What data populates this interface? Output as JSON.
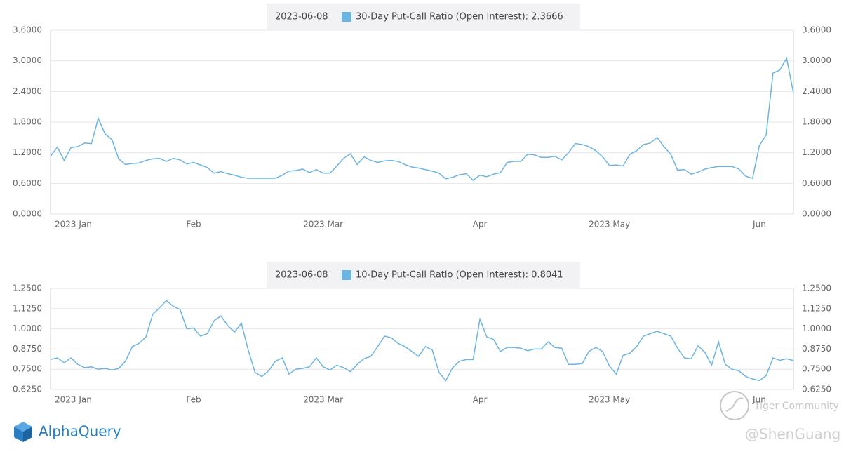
{
  "chart_data": [
    {
      "type": "line",
      "date": "2023-06-08",
      "categories": [
        "2023 Jan",
        null,
        null,
        null,
        null,
        null,
        null,
        null,
        null,
        null,
        null,
        null,
        null,
        null,
        null,
        null,
        null,
        null,
        null,
        null,
        null,
        "Feb",
        null,
        null,
        null,
        null,
        null,
        null,
        null,
        null,
        null,
        null,
        null,
        null,
        null,
        null,
        null,
        null,
        null,
        null,
        "2023 Mar",
        null,
        null,
        null,
        null,
        null,
        null,
        null,
        null,
        null,
        null,
        null,
        null,
        null,
        null,
        null,
        null,
        null,
        null,
        null,
        null,
        null,
        null,
        "Apr",
        null,
        null,
        null,
        null,
        null,
        null,
        null,
        null,
        null,
        null,
        null,
        null,
        null,
        null,
        null,
        null,
        null,
        null,
        "2023 May",
        null,
        null,
        null,
        null,
        null,
        null,
        null,
        null,
        null,
        null,
        null,
        null,
        null,
        null,
        null,
        null,
        null,
        null,
        null,
        null,
        null,
        "Jun",
        null,
        null,
        null,
        null,
        null
      ],
      "series": [
        {
          "name": "30-Day Put-Call Ratio (Open Interest): 2.3666",
          "color": "#6cb4e4",
          "values": [
            1.13,
            1.31,
            1.05,
            1.3,
            1.32,
            1.39,
            1.38,
            1.87,
            1.57,
            1.46,
            1.08,
            0.97,
            0.99,
            1.0,
            1.05,
            1.08,
            1.09,
            1.03,
            1.09,
            1.06,
            0.98,
            1.01,
            0.96,
            0.91,
            0.8,
            0.83,
            0.79,
            0.76,
            0.72,
            0.7,
            0.7,
            0.7,
            0.7,
            0.7,
            0.76,
            0.84,
            0.85,
            0.88,
            0.81,
            0.87,
            0.8,
            0.8,
            0.94,
            1.09,
            1.18,
            0.97,
            1.12,
            1.05,
            1.01,
            1.04,
            1.05,
            1.03,
            0.97,
            0.92,
            0.9,
            0.87,
            0.84,
            0.8,
            0.69,
            0.72,
            0.77,
            0.79,
            0.66,
            0.76,
            0.73,
            0.78,
            0.81,
            1.01,
            1.03,
            1.03,
            1.17,
            1.16,
            1.11,
            1.11,
            1.13,
            1.06,
            1.2,
            1.38,
            1.36,
            1.32,
            1.24,
            1.12,
            0.95,
            0.96,
            0.94,
            1.17,
            1.24,
            1.36,
            1.39,
            1.5,
            1.32,
            1.17,
            0.86,
            0.87,
            0.78,
            0.82,
            0.88,
            0.91,
            0.93,
            0.93,
            0.93,
            0.88,
            0.74,
            0.7,
            1.34,
            1.55,
            2.76,
            2.82,
            3.05,
            2.3666
          ]
        }
      ],
      "ylim": [
        0,
        3.6
      ],
      "yticks": [
        {
          "value": 0,
          "label": "0.0000"
        },
        {
          "value": 0.6,
          "label": "0.6000"
        },
        {
          "value": 1.2,
          "label": "1.2000"
        },
        {
          "value": 1.8,
          "label": "1.8000"
        },
        {
          "value": 2.4,
          "label": "2.4000"
        },
        {
          "value": 3,
          "label": "3.0000"
        },
        {
          "value": 3.6,
          "label": "3.6000"
        }
      ],
      "grid": true
    },
    {
      "type": "line",
      "date": "2023-06-08",
      "categories": [
        "2023 Jan",
        null,
        null,
        null,
        null,
        null,
        null,
        null,
        null,
        null,
        null,
        null,
        null,
        null,
        null,
        null,
        null,
        null,
        null,
        null,
        null,
        "Feb",
        null,
        null,
        null,
        null,
        null,
        null,
        null,
        null,
        null,
        null,
        null,
        null,
        null,
        null,
        null,
        null,
        null,
        null,
        "2023 Mar",
        null,
        null,
        null,
        null,
        null,
        null,
        null,
        null,
        null,
        null,
        null,
        null,
        null,
        null,
        null,
        null,
        null,
        null,
        null,
        null,
        null,
        null,
        "Apr",
        null,
        null,
        null,
        null,
        null,
        null,
        null,
        null,
        null,
        null,
        null,
        null,
        null,
        null,
        null,
        null,
        null,
        null,
        "2023 May",
        null,
        null,
        null,
        null,
        null,
        null,
        null,
        null,
        null,
        null,
        null,
        null,
        null,
        null,
        null,
        null,
        null,
        null,
        null,
        null,
        null,
        "Jun",
        null,
        null,
        null,
        null,
        null
      ],
      "series": [
        {
          "name": "10-Day Put-Call Ratio (Open Interest): 0.8041",
          "color": "#6cb4e4",
          "values": [
            0.81,
            0.82,
            0.79,
            0.82,
            0.78,
            0.76,
            0.765,
            0.75,
            0.755,
            0.745,
            0.755,
            0.8,
            0.89,
            0.91,
            0.95,
            1.09,
            1.13,
            1.175,
            1.14,
            1.12,
            1.0,
            1.005,
            0.955,
            0.97,
            1.05,
            1.08,
            1.02,
            0.98,
            1.035,
            0.87,
            0.73,
            0.705,
            0.74,
            0.8,
            0.82,
            0.72,
            0.75,
            0.755,
            0.765,
            0.82,
            0.765,
            0.745,
            0.775,
            0.76,
            0.735,
            0.78,
            0.815,
            0.83,
            0.89,
            0.955,
            0.945,
            0.91,
            0.89,
            0.86,
            0.83,
            0.89,
            0.87,
            0.73,
            0.68,
            0.76,
            0.8,
            0.81,
            0.81,
            1.06,
            0.95,
            0.935,
            0.86,
            0.885,
            0.885,
            0.88,
            0.865,
            0.875,
            0.875,
            0.92,
            0.885,
            0.88,
            0.78,
            0.78,
            0.785,
            0.86,
            0.885,
            0.86,
            0.77,
            0.72,
            0.835,
            0.85,
            0.89,
            0.955,
            0.97,
            0.985,
            0.97,
            0.955,
            0.88,
            0.82,
            0.815,
            0.895,
            0.855,
            0.775,
            0.92,
            0.78,
            0.75,
            0.74,
            0.705,
            0.69,
            0.68,
            0.71,
            0.82,
            0.805,
            0.815,
            0.8041
          ]
        }
      ],
      "ylim": [
        0.625,
        1.25
      ],
      "yticks": [
        {
          "value": 0.625,
          "label": "0.6250"
        },
        {
          "value": 0.75,
          "label": "0.7500"
        },
        {
          "value": 0.875,
          "label": "0.8750"
        },
        {
          "value": 1,
          "label": "1.0000"
        },
        {
          "value": 1.125,
          "label": "1.1250"
        },
        {
          "value": 1.25,
          "label": "1.2500"
        }
      ],
      "grid": true
    }
  ],
  "brand": "AlphaQuery",
  "watermark": [
    "Tiger Community",
    "@ShenGuang"
  ]
}
